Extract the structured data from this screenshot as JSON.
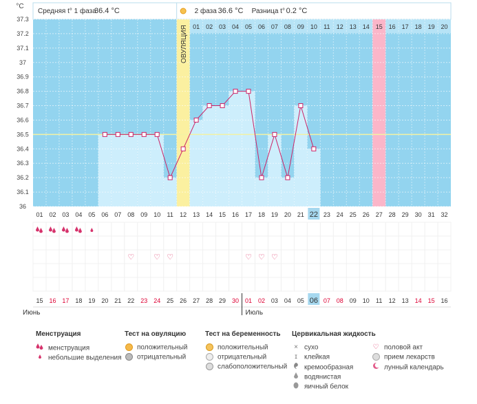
{
  "chart_data": {
    "type": "bar",
    "unit_label": "°C",
    "ylim": [
      36.0,
      37.3
    ],
    "yticks": [
      "37.3",
      "37.2",
      "37.1",
      "37",
      "36.9",
      "36.8",
      "36.7",
      "36.6",
      "36.5",
      "36.4",
      "36.3",
      "36.2",
      "36.1",
      "36"
    ],
    "cycle_days": [
      "01",
      "02",
      "03",
      "04",
      "05",
      "06",
      "07",
      "08",
      "09",
      "10",
      "11",
      "12",
      "13",
      "14",
      "15",
      "16",
      "17",
      "18",
      "19",
      "20",
      "21",
      "22",
      "23",
      "24",
      "25",
      "26",
      "27",
      "28",
      "29",
      "30",
      "31",
      "32"
    ],
    "header_days": [
      "",
      "",
      "",
      "",
      "",
      "",
      "",
      "",
      "",
      "",
      "",
      "",
      "01",
      "02",
      "03",
      "04",
      "05",
      "06",
      "07",
      "08",
      "09",
      "10",
      "11",
      "12",
      "13",
      "14",
      "15",
      "16",
      "17",
      "18",
      "19",
      "20"
    ],
    "temperatures": [
      null,
      null,
      null,
      null,
      null,
      36.5,
      36.5,
      36.5,
      36.5,
      36.5,
      36.2,
      36.4,
      36.6,
      36.7,
      36.7,
      36.8,
      36.8,
      36.2,
      36.5,
      36.2,
      36.7,
      36.4,
      null,
      null,
      null,
      null,
      null,
      null,
      null,
      null,
      null,
      null
    ],
    "coverline": 36.5,
    "ovulation_day": 12,
    "ovulation_label": "ОВУЛЯЦИЯ",
    "highlight_day": 27,
    "today_cycle_day": 22,
    "calendar_dates": [
      "15",
      "16",
      "17",
      "18",
      "19",
      "20",
      "21",
      "22",
      "23",
      "24",
      "25",
      "26",
      "27",
      "28",
      "29",
      "30",
      "01",
      "02",
      "03",
      "04",
      "05",
      "06",
      "07",
      "08",
      "09",
      "10",
      "11",
      "12",
      "13",
      "14",
      "15",
      "16"
    ],
    "red_date_indices": [
      1,
      2,
      8,
      9,
      15,
      16,
      17,
      22,
      23,
      29,
      30
    ],
    "month_labels": {
      "first": "Июнь",
      "second": "Июль"
    },
    "menstruation_days": [
      1,
      2,
      3,
      4,
      5
    ],
    "heart_days": [
      8,
      10,
      11,
      17,
      18,
      19
    ],
    "colors": {
      "plot": "#93d4ef",
      "bar": "#cdeefc",
      "line": "#cc2266",
      "ovulation": "#fbf0a0",
      "highlight": "#fbb6c9",
      "today": "#a6d8ef",
      "red": "#dd0033"
    }
  },
  "summary": {
    "phase1_label": "Средняя t° 1 фаза",
    "phase1_value": "36.4 °C",
    "phase2_label": "2 фаза",
    "phase2_value": "36.6 °C",
    "diff_label": "Разница t°",
    "diff_value": "0.2 °C"
  },
  "legend": {
    "menstruation": {
      "title": "Менструация",
      "items": [
        "менструация",
        "небольшие выделения"
      ]
    },
    "ovulation_test": {
      "title": "Тест на овуляцию",
      "items": [
        "положительный",
        "отрицательный"
      ]
    },
    "pregnancy_test": {
      "title": "Тест на беременность",
      "items": [
        "положительный",
        "отрицательный",
        "слабоположительный"
      ]
    },
    "cervical": {
      "title": "Цервикальная жидкость",
      "items": [
        "сухо",
        "клейкая",
        "кремообразная",
        "водянистая",
        "яичный белок"
      ]
    },
    "other": {
      "items": [
        "половой акт",
        "прием лекарств",
        "лунный календарь"
      ]
    }
  }
}
